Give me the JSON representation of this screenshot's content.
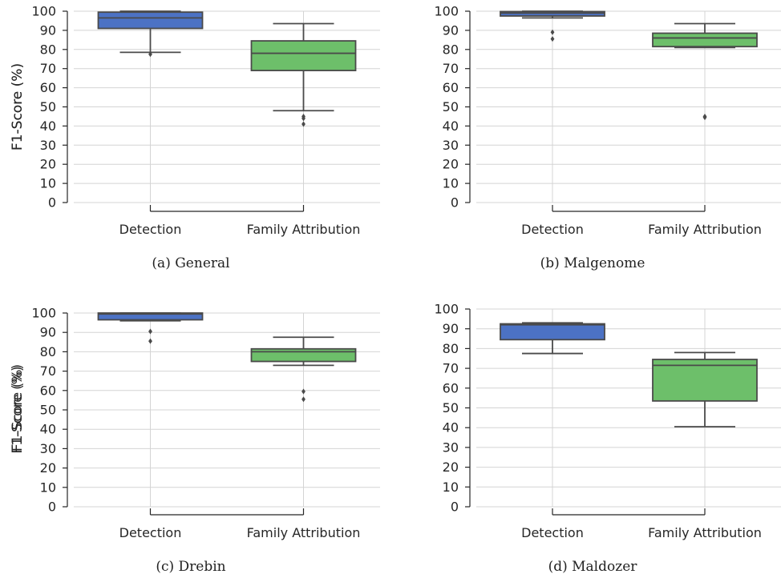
{
  "colors": {
    "detection": "#4c72c4",
    "family": "#6dbf6a",
    "line": "#4a4a4a",
    "grid": "#d4d4d4",
    "spine": "#262626"
  },
  "chart_data": [
    {
      "type": "box",
      "caption": "(a) General",
      "ylabel": "F1-Score (%)",
      "ylim": [
        0,
        100
      ],
      "yticks": [
        0,
        10,
        20,
        30,
        40,
        50,
        60,
        70,
        80,
        90,
        100
      ],
      "grid": true,
      "categories": [
        "Detection",
        "Family Attribution"
      ],
      "boxes": [
        {
          "q1": 91,
          "median": 96.5,
          "q3": 99.5,
          "whisker_low": 78.5,
          "whisker_high": 100,
          "outliers": [
            77.5
          ]
        },
        {
          "q1": 69,
          "median": 78,
          "q3": 84.5,
          "whisker_low": 48,
          "whisker_high": 93.5,
          "outliers": [
            45,
            44,
            41
          ]
        }
      ]
    },
    {
      "type": "box",
      "caption": "(b) Malgenome",
      "ylabel": "F1-Score (%)",
      "ylim": [
        0,
        100
      ],
      "yticks": [
        0,
        10,
        20,
        30,
        40,
        50,
        60,
        70,
        80,
        90,
        100
      ],
      "grid": true,
      "categories": [
        "Detection",
        "Family Attribution"
      ],
      "boxes": [
        {
          "q1": 97.5,
          "median": 99,
          "q3": 99.8,
          "whisker_low": 96.5,
          "whisker_high": 100,
          "outliers": [
            89,
            85.5
          ]
        },
        {
          "q1": 81.5,
          "median": 86,
          "q3": 88.5,
          "whisker_low": 81,
          "whisker_high": 93.5,
          "outliers": [
            45,
            44.5
          ]
        }
      ]
    },
    {
      "type": "box",
      "caption": "(c) Drebin",
      "ylabel": "F1-Score (%)",
      "ylim": [
        0,
        100
      ],
      "yticks": [
        0,
        10,
        20,
        30,
        40,
        50,
        60,
        70,
        80,
        90,
        100
      ],
      "grid": true,
      "categories": [
        "Detection",
        "Family Attribution"
      ],
      "boxes": [
        {
          "q1": 96.5,
          "median": 99.5,
          "q3": 100,
          "whisker_low": 96,
          "whisker_high": 100,
          "outliers": [
            90.5,
            85.5
          ]
        },
        {
          "q1": 75,
          "median": 80,
          "q3": 81.5,
          "whisker_low": 73,
          "whisker_high": 87.5,
          "outliers": [
            59.5,
            55.5
          ]
        }
      ]
    },
    {
      "type": "box",
      "caption": "(d) Maldozer",
      "ylabel": "F1-Score (%)",
      "ylim": [
        0,
        100
      ],
      "yticks": [
        0,
        10,
        20,
        30,
        40,
        50,
        60,
        70,
        80,
        90,
        100
      ],
      "grid": true,
      "categories": [
        "Detection",
        "Family Attribution"
      ],
      "boxes": [
        {
          "q1": 84.5,
          "median": 92,
          "q3": 92.5,
          "whisker_low": 77.5,
          "whisker_high": 93,
          "outliers": []
        },
        {
          "q1": 53.5,
          "median": 71.5,
          "q3": 74.5,
          "whisker_low": 40.5,
          "whisker_high": 78,
          "outliers": []
        }
      ]
    }
  ]
}
